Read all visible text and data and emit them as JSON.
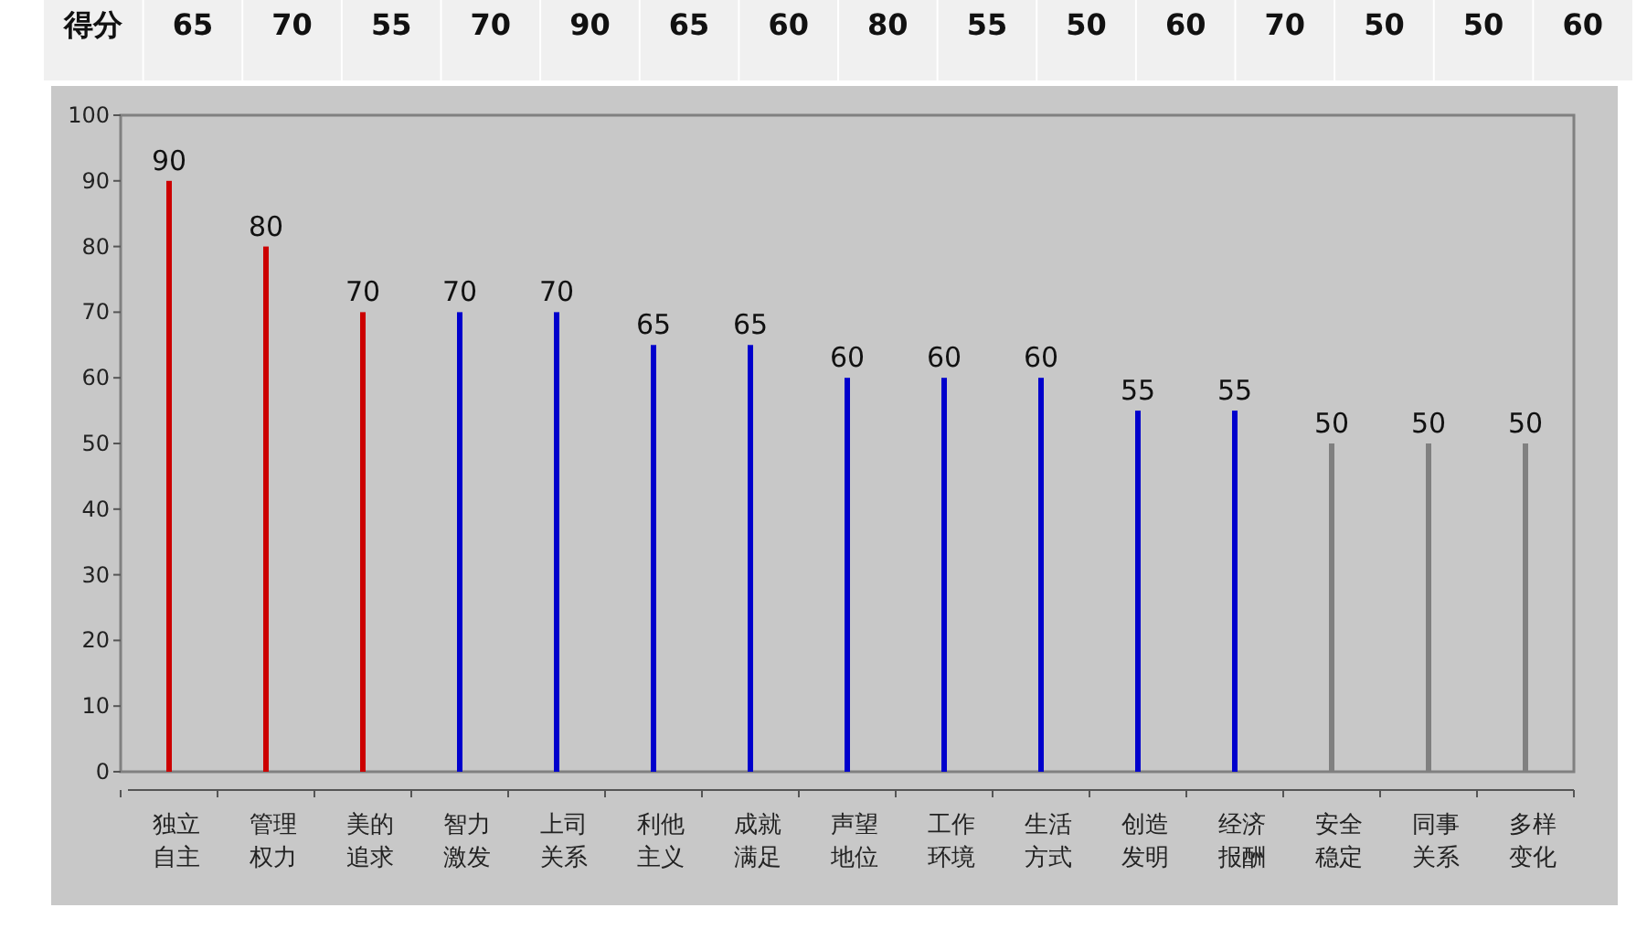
{
  "chart_data": {
    "type": "bar",
    "categories": [
      "独立自主",
      "管理权力",
      "美的追求",
      "智力激发",
      "上司关系",
      "利他主义",
      "成就满足",
      "声望地位",
      "工作环境",
      "生活方式",
      "创造发明",
      "经济报酬",
      "安全稳定",
      "同事关系",
      "多样变化"
    ],
    "values": [
      90,
      80,
      70,
      70,
      70,
      65,
      65,
      60,
      60,
      60,
      55,
      55,
      50,
      50,
      50
    ],
    "colors": [
      "#cc0000",
      "#cc0000",
      "#cc0000",
      "#0000cc",
      "#0000cc",
      "#0000cc",
      "#0000cc",
      "#0000cc",
      "#0000cc",
      "#0000cc",
      "#0000cc",
      "#0000cc",
      "#808080",
      "#808080",
      "#808080"
    ],
    "ylim": [
      0,
      100
    ],
    "yticks": [
      0,
      10,
      20,
      30,
      40,
      50,
      60,
      70,
      80,
      90,
      100
    ],
    "data_labels": true,
    "grid": false,
    "annotations": [
      "得分",
      "65",
      "70",
      "55",
      "70",
      "90",
      "65",
      "60",
      "80",
      "55",
      "50",
      "60",
      "70",
      "50",
      "50",
      "60"
    ]
  }
}
